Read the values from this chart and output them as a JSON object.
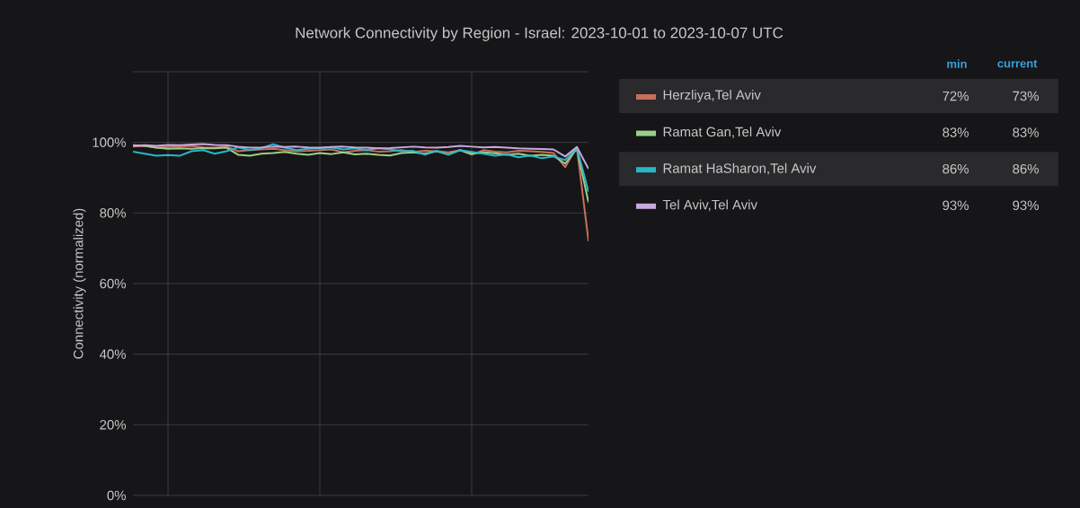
{
  "chart_data": {
    "type": "line",
    "title": "Network Connectivity by Region - Israel: 2023-10-01 to 2023-10-07 UTC",
    "ylabel": "Connectivity (normalized)",
    "categories": [
      null,
      null,
      null,
      null,
      null,
      null,
      null,
      null,
      null,
      null,
      null,
      null,
      null,
      null,
      null,
      null,
      null,
      null,
      null,
      null,
      null,
      null,
      null,
      null,
      null,
      null,
      null,
      null,
      null,
      null,
      null,
      null,
      null,
      null,
      null,
      null,
      null,
      null,
      null,
      null
    ],
    "series": [
      {
        "name": "Herzliya,Tel Aviv",
        "color": "#c8705a",
        "values": [
          98.8,
          99,
          98.5,
          98.7,
          98.8,
          99,
          98.6,
          98.5,
          98.8,
          97.5,
          97.8,
          98,
          98.2,
          97.8,
          97.5,
          97.6,
          97.8,
          98,
          97.2,
          97.6,
          97.8,
          97.4,
          97.5,
          97.8,
          97.3,
          97.6,
          97.5,
          97.2,
          97.8,
          96.5,
          97.8,
          97.4,
          97.2,
          97.6,
          97.5,
          97.3,
          97,
          93,
          98.7,
          72
        ]
      },
      {
        "name": "Ramat Gan,Tel Aviv",
        "color": "#98d08a",
        "values": [
          99.2,
          99,
          98.5,
          98.2,
          98.3,
          98.2,
          98.4,
          98.3,
          98.5,
          96.5,
          96.2,
          96.8,
          97,
          97.3,
          96.8,
          96.5,
          97,
          96.7,
          97.2,
          96.6,
          96.8,
          96.5,
          96.3,
          97,
          97.2,
          96.8,
          97.5,
          96.6,
          97.8,
          96.8,
          97.2,
          96.9,
          96.5,
          96.8,
          96.2,
          96.5,
          96.2,
          94,
          98.2,
          83
        ]
      },
      {
        "name": "Ramat HaSharon,Tel Aviv",
        "color": "#29b6c9",
        "values": [
          97.4,
          96.8,
          96.2,
          96.4,
          96.2,
          97.5,
          97.8,
          96.8,
          97.5,
          98.6,
          97.8,
          98.4,
          99.5,
          98.5,
          97.8,
          98.2,
          98.4,
          98.6,
          98,
          98.3,
          97.8,
          98.4,
          98,
          97.5,
          97.6,
          96.5,
          97.6,
          96.5,
          97.8,
          97.3,
          96.8,
          96.2,
          96.6,
          95.8,
          96.3,
          95.5,
          96,
          95,
          98.5,
          86
        ]
      },
      {
        "name": "Tel Aviv,Tel Aviv",
        "color": "#c9a8e0",
        "values": [
          99,
          99.2,
          99,
          99.3,
          99.2,
          99.4,
          99.5,
          99.3,
          99.2,
          98.8,
          98.5,
          98.6,
          98.8,
          98.7,
          98.8,
          98.6,
          98.5,
          98.7,
          98.8,
          98.6,
          98.5,
          98.3,
          98.4,
          98.6,
          98.8,
          98.6,
          98.5,
          98.7,
          99,
          98.8,
          98.6,
          98.7,
          98.5,
          98.3,
          98.2,
          98.1,
          98,
          96,
          98.7,
          92.5
        ]
      }
    ],
    "ylim": [
      0,
      120
    ],
    "yticks": [
      {
        "value": 0,
        "label": "0%"
      },
      {
        "value": 20,
        "label": "20%"
      },
      {
        "value": 40,
        "label": "40%"
      },
      {
        "value": 60,
        "label": "60%"
      },
      {
        "value": 80,
        "label": "80%"
      },
      {
        "value": 100,
        "label": "100%"
      },
      {
        "value": 120,
        "label": null
      }
    ],
    "grid": true,
    "legend": "right",
    "marker": "none",
    "line_style": "solid",
    "annotations": [
      "min",
      "current",
      "72%",
      "73%",
      "83%",
      "83%",
      "86%",
      "86%",
      "93%",
      "93%"
    ]
  }
}
